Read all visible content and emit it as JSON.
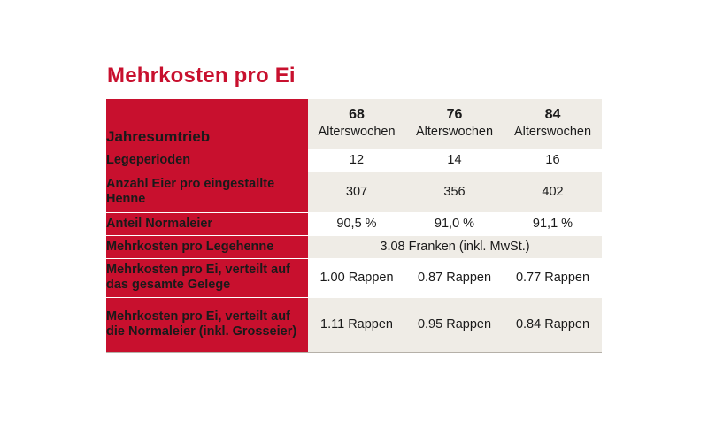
{
  "title": "Mehrkosten pro Ei",
  "table": {
    "header": {
      "label": "Jahresumtrieb",
      "columns": [
        {
          "number": "68",
          "unit": "Alterswochen"
        },
        {
          "number": "76",
          "unit": "Alterswochen"
        },
        {
          "number": "84",
          "unit": "Alterswochen"
        }
      ]
    },
    "rows": [
      {
        "label": "Legeperioden",
        "values": [
          "12",
          "14",
          "16"
        ]
      },
      {
        "label": "Anzahl Eier pro eingestallte Henne",
        "values": [
          "307",
          "356",
          "402"
        ]
      },
      {
        "label": "Anteil Normaleier",
        "values": [
          "90,5 %",
          "91,0 %",
          "91,1 %"
        ]
      },
      {
        "label": "Mehrkosten pro Legehenne",
        "merged_value": "3.08 Franken (inkl. MwSt.)"
      },
      {
        "label": "Mehrkosten pro Ei, verteilt auf das gesamte Gelege",
        "values": [
          "1.00 Rappen",
          "0.87 Rappen",
          "0.77 Rappen"
        ]
      },
      {
        "label": "Mehrkosten pro Ei, verteilt auf die Normaleier (inkl. Gross­eier)",
        "values": [
          "1.11 Rappen",
          "0.95 Rappen",
          "0.84 Rappen"
        ]
      }
    ]
  },
  "colors": {
    "accent": "#c8102e",
    "shade": "#efece6"
  }
}
